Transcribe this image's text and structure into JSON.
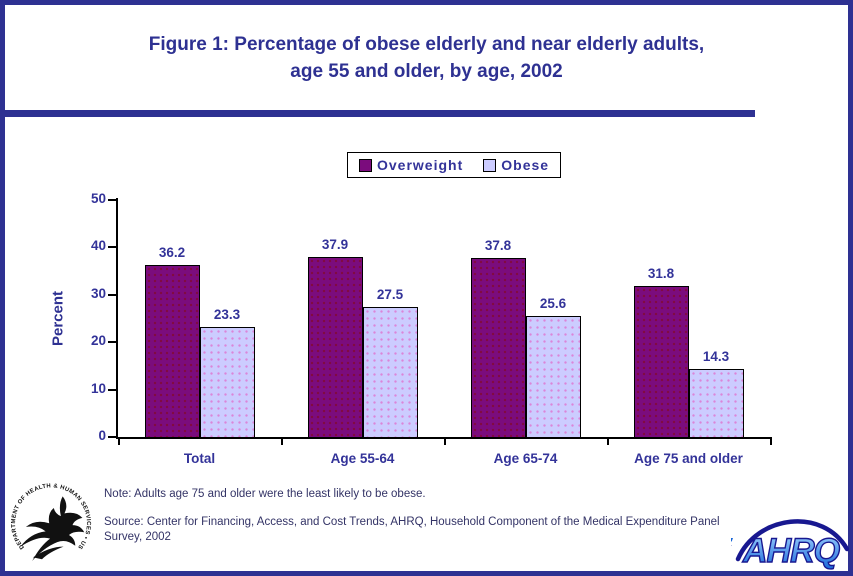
{
  "title": {
    "line1": "Figure 1: Percentage of obese elderly and near elderly adults,",
    "line2": "age 55 and older, by age, 2002"
  },
  "chart_data": {
    "type": "bar",
    "categories": [
      "Total",
      "Age 55-64",
      "Age 65-74",
      "Age 75 and older"
    ],
    "series": [
      {
        "name": "Overweight",
        "color": "#7B0C7D",
        "values": [
          36.2,
          37.9,
          37.8,
          31.8
        ]
      },
      {
        "name": "Obese",
        "color": "#CCCCFF",
        "values": [
          23.3,
          27.5,
          25.6,
          14.3
        ]
      }
    ],
    "ylabel": "Percent",
    "xlabel": "",
    "ylim": [
      0,
      50
    ],
    "yticks": [
      0,
      10,
      20,
      30,
      40,
      50
    ],
    "grid": false,
    "legend_position": "top-center",
    "value_labels_shown": true
  },
  "note": "Note: Adults age 75 and older were the least likely to be obese.",
  "source": "Source: Center for Financing, Access, and Cost Trends, AHRQ, Household Component of the Medical Expenditure Panel Survey, 2002",
  "logos": {
    "hhs_circular_text": "DEPARTMENT OF HEALTH & HUMAN SERVICES • USA",
    "ahrq_text": "AHRQ"
  },
  "colors": {
    "frame_navy": "#2E3192",
    "label_navy": "#333399",
    "note_navy": "#333366",
    "overweight_purple": "#7B0C7D",
    "obese_lavender": "#CCCCFF",
    "axis_black": "#000000"
  }
}
